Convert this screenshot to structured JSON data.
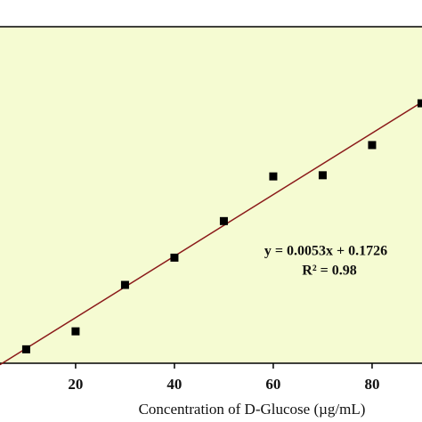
{
  "chart_data": {
    "type": "scatter",
    "x_label": "Concentration of D-Glucose (µg/mL)",
    "x": [
      10,
      20,
      30,
      40,
      50,
      60,
      70,
      80,
      90
    ],
    "series": [
      {
        "color": "#000000",
        "values": [
          0.224,
          0.255,
          0.335,
          0.382,
          0.445,
          0.522,
          0.524,
          0.576,
          0.648
        ]
      }
    ],
    "trendline": {
      "slope": 0.0053,
      "intercept": 0.1726,
      "color": "#8b1a1a"
    },
    "annotations": [
      "y = 0.0053x + 0.1726",
      "R² = 0.98"
    ],
    "xlim": [
      4.7,
      90.1
    ],
    "xticks": [
      20,
      40,
      60,
      80
    ],
    "ylim": [
      0.2,
      0.78
    ],
    "background": "#f5fbd2"
  }
}
